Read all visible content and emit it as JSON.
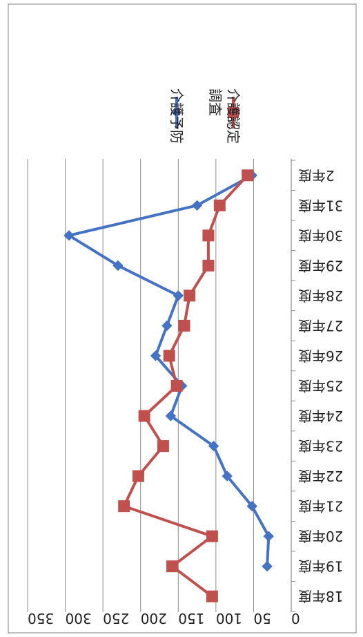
{
  "chart_data": {
    "type": "line",
    "orientation": "rotated-180",
    "categories": [
      "18年度",
      "19年度",
      "20年度",
      "21年度",
      "22年度",
      "23年度",
      "24年度",
      "25年度",
      "26年度",
      "27年度",
      "28年度",
      "29年度",
      "30年度",
      "31年度",
      "2年度"
    ],
    "series": [
      {
        "name": "介護予防",
        "color": "#4472c4",
        "marker": "diamond",
        "values": [
          null,
          32,
          30,
          52,
          85,
          103,
          160,
          145,
          180,
          165,
          150,
          230,
          295,
          125,
          52
        ]
      },
      {
        "name": "介護認定調査",
        "color": "#c0504d",
        "marker": "square",
        "values": [
          105,
          158,
          105,
          222,
          203,
          170,
          195,
          152,
          162,
          142,
          135,
          110,
          110,
          95,
          58
        ]
      }
    ],
    "ylim": [
      0,
      350
    ],
    "yticks": [
      0,
      50,
      100,
      150,
      200,
      250,
      300,
      350
    ],
    "grid": true,
    "legend_position": "top",
    "title": "",
    "xlabel": "",
    "ylabel": ""
  }
}
